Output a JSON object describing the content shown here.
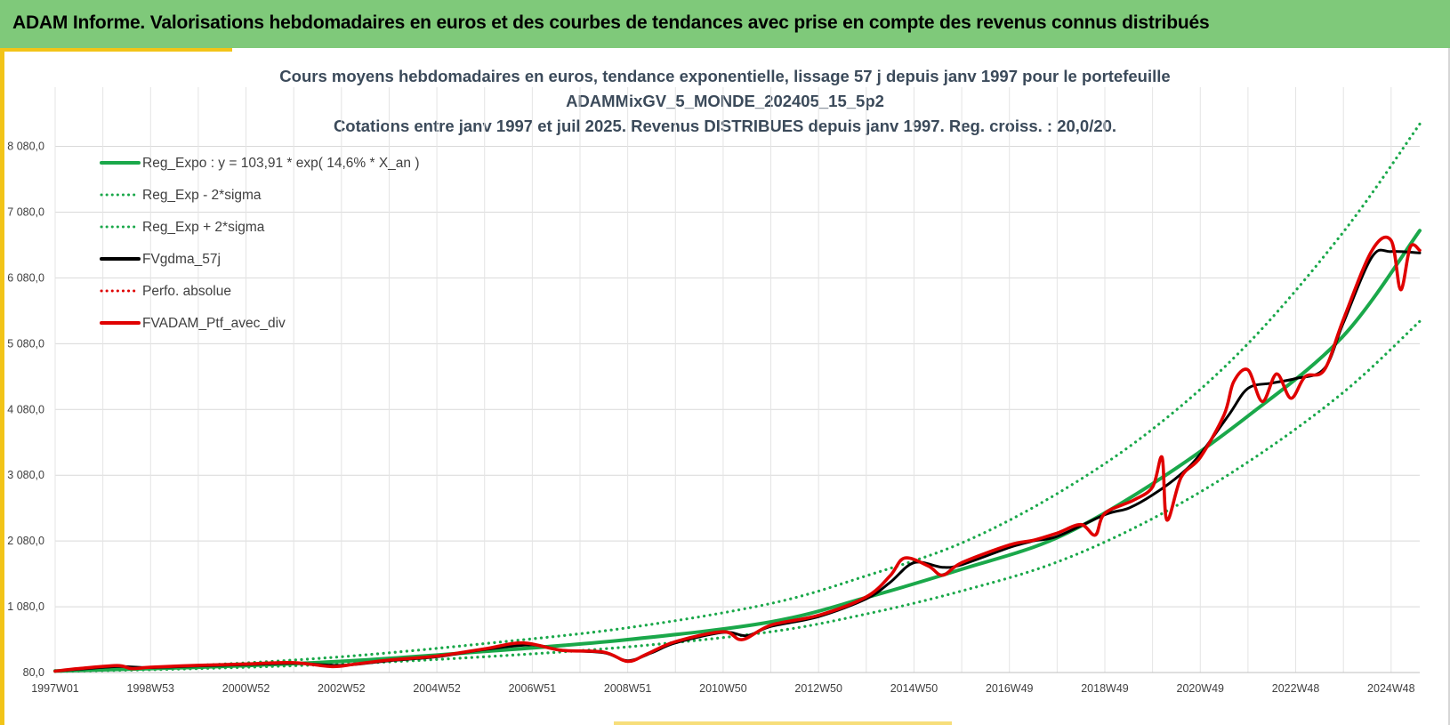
{
  "header": {
    "title": "ADAM Informe. Valorisations hebdomadaires en euros et des courbes de tendances avec prise en compte des revenus connus distribués",
    "bg_color": "#7fc97a",
    "accent_color": "#f2c418"
  },
  "chart_data": {
    "type": "line",
    "title_lines": [
      "Cours moyens hebdomadaires  en euros, tendance exponentielle, lissage 57 j depuis janv 1997 pour le portefeuille",
      "ADAMMixGV_5_MONDE_202405_15_5p2",
      "Cotations entre janv 1997 et juil 2025. Revenus DISTRIBUES depuis janv 1997. Reg. croiss. : 20,0/20."
    ],
    "ylim": [
      80,
      8980
    ],
    "y_ticks": [
      "80,0",
      "1 080,0",
      "2 080,0",
      "3 080,0",
      "4 080,0",
      "5 080,0",
      "6 080,0",
      "7 080,0",
      "8 080,0"
    ],
    "y_tick_values": [
      80,
      1080,
      2080,
      3080,
      4080,
      5080,
      6080,
      7080,
      8080
    ],
    "x_ticks": [
      "1997W01",
      "1998W53",
      "2000W52",
      "2002W52",
      "2004W52",
      "2006W51",
      "2008W51",
      "2010W50",
      "2012W50",
      "2014W50",
      "2016W49",
      "2018W49",
      "2020W49",
      "2022W48",
      "2024W48"
    ],
    "x_tick_years": [
      1997.0,
      1999.0,
      2001.0,
      2003.0,
      2005.0,
      2007.0,
      2009.0,
      2011.0,
      2013.0,
      2015.0,
      2017.0,
      2019.0,
      2021.0,
      2023.0,
      2025.0
    ],
    "x_range_years": [
      1997.0,
      2025.6
    ],
    "grid": true,
    "legend_position": "top-left",
    "legend": [
      {
        "label": "Reg_Expo : y = 103,91 * exp( 14,6% *  X_an )",
        "color": "#1aa84a",
        "style": "solid"
      },
      {
        "label": "Reg_Exp - 2*sigma",
        "color": "#1aa84a",
        "style": "dotted"
      },
      {
        "label": "Reg_Exp + 2*sigma",
        "color": "#1aa84a",
        "style": "dotted"
      },
      {
        "label": "FVgdma_57j",
        "color": "#000000",
        "style": "solid"
      },
      {
        "label": "Perfo. absolue",
        "color": "#e00000",
        "style": "dotted"
      },
      {
        "label": "FVADAM_Ptf_avec_div",
        "color": "#e00000",
        "style": "solid"
      }
    ],
    "series": [
      {
        "name": "Reg_Expo : y = 103,91 * exp( 14,6% *  X_an )",
        "color": "#1aa84a",
        "style": "solid",
        "points": [
          [
            1997.0,
            104
          ],
          [
            2000.0,
            160
          ],
          [
            2003.0,
            250
          ],
          [
            2006.0,
            400
          ],
          [
            2009.0,
            580
          ],
          [
            2012.0,
            850
          ],
          [
            2014.0,
            1220
          ],
          [
            2016.0,
            1650
          ],
          [
            2018.0,
            2130
          ],
          [
            2020.0,
            2950
          ],
          [
            2022.0,
            3980
          ],
          [
            2024.0,
            5200
          ],
          [
            2025.6,
            6800
          ]
        ]
      },
      {
        "name": "Reg_Exp - 2*sigma",
        "color": "#1aa84a",
        "style": "dotted",
        "points": [
          [
            1997.0,
            95
          ],
          [
            2000.0,
            140
          ],
          [
            2003.0,
            210
          ],
          [
            2006.0,
            320
          ],
          [
            2009.0,
            470
          ],
          [
            2012.0,
            700
          ],
          [
            2014.0,
            970
          ],
          [
            2016.0,
            1320
          ],
          [
            2018.0,
            1760
          ],
          [
            2020.0,
            2420
          ],
          [
            2022.0,
            3280
          ],
          [
            2024.0,
            4340
          ],
          [
            2025.6,
            5420
          ]
        ]
      },
      {
        "name": "Reg_Exp + 2*sigma",
        "color": "#1aa84a",
        "style": "dotted",
        "points": [
          [
            1997.0,
            110
          ],
          [
            2000.0,
            190
          ],
          [
            2003.0,
            320
          ],
          [
            2006.0,
            520
          ],
          [
            2009.0,
            760
          ],
          [
            2012.0,
            1130
          ],
          [
            2014.0,
            1550
          ],
          [
            2016.0,
            2050
          ],
          [
            2018.0,
            2800
          ],
          [
            2020.0,
            3780
          ],
          [
            2022.0,
            5080
          ],
          [
            2024.0,
            6780
          ],
          [
            2025.6,
            8420
          ]
        ]
      },
      {
        "name": "FVgdma_57j",
        "color": "#000000",
        "style": "solid",
        "points": [
          [
            1997.0,
            100
          ],
          [
            1997.5,
            130
          ],
          [
            1998.3,
            170
          ],
          [
            1999.0,
            155
          ],
          [
            2000.0,
            180
          ],
          [
            2001.0,
            200
          ],
          [
            2002.0,
            220
          ],
          [
            2003.0,
            190
          ],
          [
            2004.0,
            260
          ],
          [
            2005.0,
            320
          ],
          [
            2006.0,
            430
          ],
          [
            2007.0,
            500
          ],
          [
            2007.6,
            420
          ],
          [
            2008.5,
            380
          ],
          [
            2009.0,
            260
          ],
          [
            2009.5,
            380
          ],
          [
            2010.0,
            530
          ],
          [
            2011.0,
            690
          ],
          [
            2011.5,
            640
          ],
          [
            2012.0,
            780
          ],
          [
            2013.0,
            930
          ],
          [
            2014.0,
            1200
          ],
          [
            2014.5,
            1450
          ],
          [
            2015.0,
            1750
          ],
          [
            2015.6,
            1680
          ],
          [
            2016.0,
            1720
          ],
          [
            2017.0,
            1980
          ],
          [
            2017.5,
            2080
          ],
          [
            2018.0,
            2150
          ],
          [
            2019.0,
            2480
          ],
          [
            2019.5,
            2580
          ],
          [
            2020.0,
            2780
          ],
          [
            2020.6,
            3100
          ],
          [
            2021.0,
            3400
          ],
          [
            2021.6,
            4000
          ],
          [
            2022.0,
            4400
          ],
          [
            2022.5,
            4480
          ],
          [
            2023.0,
            4550
          ],
          [
            2023.6,
            4700
          ],
          [
            2024.0,
            5400
          ],
          [
            2024.6,
            6400
          ],
          [
            2025.0,
            6480
          ],
          [
            2025.6,
            6460
          ]
        ]
      },
      {
        "name": "FVADAM_Ptf_avec_div",
        "color": "#e00000",
        "style": "solid",
        "points": [
          [
            1997.0,
            100
          ],
          [
            1997.5,
            140
          ],
          [
            1998.3,
            185
          ],
          [
            1998.6,
            140
          ],
          [
            1999.0,
            160
          ],
          [
            2000.0,
            190
          ],
          [
            2001.0,
            210
          ],
          [
            2002.0,
            230
          ],
          [
            2002.8,
            170
          ],
          [
            2003.3,
            210
          ],
          [
            2004.0,
            270
          ],
          [
            2005.0,
            330
          ],
          [
            2006.0,
            440
          ],
          [
            2006.8,
            530
          ],
          [
            2007.6,
            420
          ],
          [
            2008.5,
            390
          ],
          [
            2009.0,
            250
          ],
          [
            2009.4,
            360
          ],
          [
            2010.0,
            550
          ],
          [
            2011.0,
            700
          ],
          [
            2011.4,
            580
          ],
          [
            2012.0,
            800
          ],
          [
            2013.0,
            950
          ],
          [
            2014.0,
            1230
          ],
          [
            2014.5,
            1550
          ],
          [
            2014.8,
            1820
          ],
          [
            2015.3,
            1700
          ],
          [
            2015.6,
            1560
          ],
          [
            2016.0,
            1750
          ],
          [
            2017.0,
            2020
          ],
          [
            2017.5,
            2090
          ],
          [
            2018.0,
            2200
          ],
          [
            2018.5,
            2330
          ],
          [
            2018.8,
            2170
          ],
          [
            2019.0,
            2500
          ],
          [
            2019.6,
            2700
          ],
          [
            2020.0,
            2900
          ],
          [
            2020.2,
            3350
          ],
          [
            2020.3,
            2400
          ],
          [
            2020.6,
            3050
          ],
          [
            2021.0,
            3350
          ],
          [
            2021.5,
            4000
          ],
          [
            2021.7,
            4500
          ],
          [
            2022.0,
            4680
          ],
          [
            2022.3,
            4200
          ],
          [
            2022.6,
            4620
          ],
          [
            2022.9,
            4250
          ],
          [
            2023.2,
            4580
          ],
          [
            2023.6,
            4680
          ],
          [
            2024.0,
            5450
          ],
          [
            2024.6,
            6500
          ],
          [
            2025.0,
            6650
          ],
          [
            2025.2,
            5900
          ],
          [
            2025.4,
            6550
          ],
          [
            2025.6,
            6500
          ]
        ]
      }
    ]
  }
}
